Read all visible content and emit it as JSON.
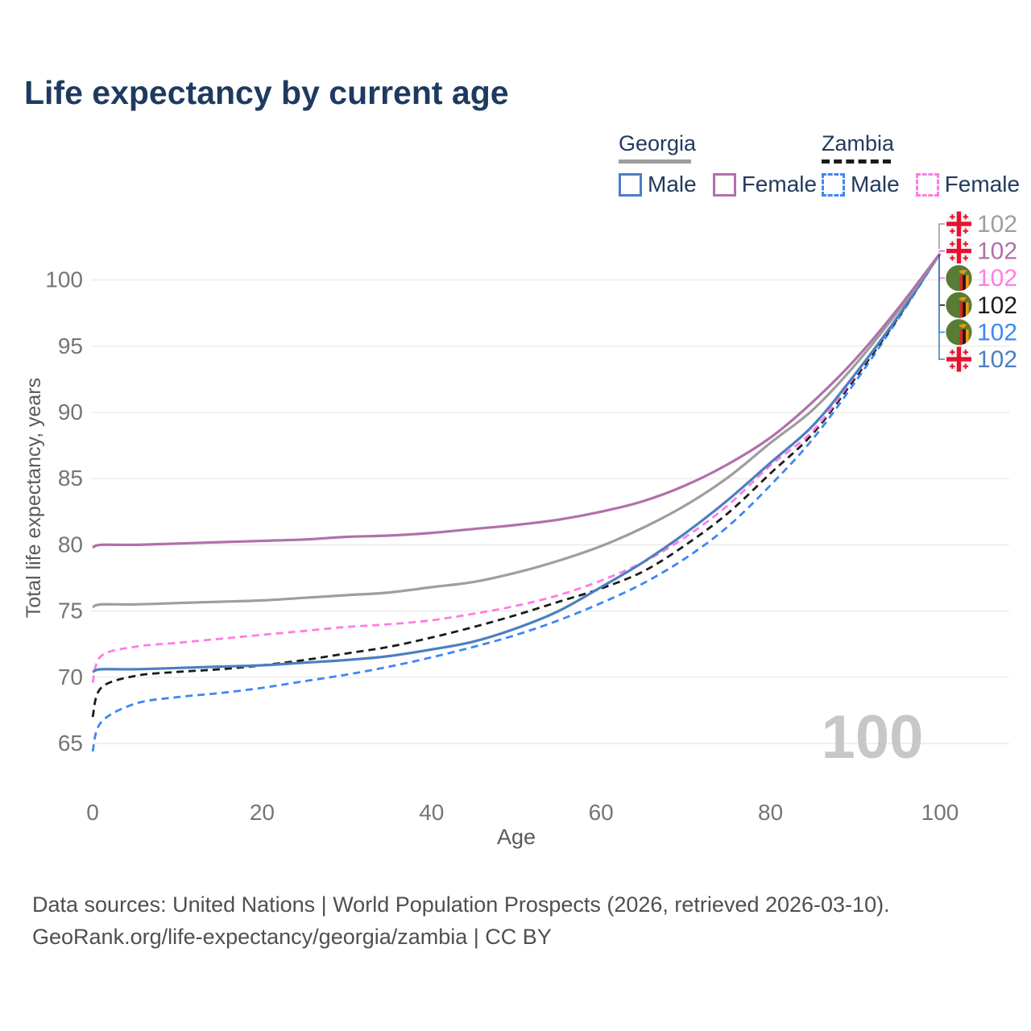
{
  "header": {
    "title": "Life expectancy by current age"
  },
  "legend": {
    "groups": [
      {
        "label": "Georgia",
        "line_style": "solid",
        "line_color": "#9e9e9e",
        "items": [
          {
            "label": "Male",
            "color": "#4c7fc0",
            "line_style": "solid"
          },
          {
            "label": "Female",
            "color": "#b170ab",
            "line_style": "solid"
          }
        ]
      },
      {
        "label": "Zambia",
        "line_style": "dashed",
        "line_color": "#1a1a1a",
        "items": [
          {
            "label": "Male",
            "color": "#3d87f5",
            "line_style": "dashed"
          },
          {
            "label": "Female",
            "color": "#ff7ce3",
            "line_style": "dashed"
          }
        ]
      }
    ]
  },
  "chart_data": {
    "type": "line",
    "title": "Life expectancy by current age",
    "xlabel": "Age",
    "ylabel": "Total life expectancy, years",
    "xticks": [
      0,
      20,
      40,
      60,
      80,
      100
    ],
    "yticks": [
      65,
      70,
      75,
      80,
      85,
      90,
      95,
      100
    ],
    "xlim": [
      0,
      100
    ],
    "ylim": [
      63,
      103
    ],
    "grid": true,
    "legend_position": "top-right",
    "x": [
      0,
      1,
      5,
      10,
      15,
      20,
      25,
      30,
      35,
      40,
      45,
      50,
      55,
      60,
      65,
      70,
      75,
      80,
      85,
      90,
      95,
      100
    ],
    "series": [
      {
        "key": "zambia-male",
        "name": "Zambia Male",
        "country": "Zambia",
        "group": "Male",
        "color": "#3d87f5",
        "dash": true,
        "values": [
          64.4,
          66.6,
          68.0,
          68.5,
          68.8,
          69.2,
          69.7,
          70.2,
          70.8,
          71.5,
          72.3,
          73.2,
          74.3,
          75.6,
          77.1,
          79.0,
          81.4,
          84.5,
          88.0,
          92.3,
          97.0,
          102
        ]
      },
      {
        "key": "zambia-total",
        "name": "Zambia",
        "country": "Zambia",
        "group": "Total",
        "color": "#1b1b1b",
        "dash": true,
        "values": [
          67.0,
          69.2,
          70.1,
          70.4,
          70.6,
          70.9,
          71.3,
          71.8,
          72.3,
          73.0,
          73.8,
          74.7,
          75.7,
          76.7,
          78.0,
          80.0,
          82.4,
          85.4,
          88.4,
          92.6,
          97.1,
          102
        ]
      },
      {
        "key": "zambia-female",
        "name": "Zambia Female",
        "country": "Zambia",
        "group": "Female",
        "color": "#ff7ce3",
        "dash": true,
        "values": [
          69.6,
          71.6,
          72.3,
          72.6,
          72.9,
          73.2,
          73.5,
          73.8,
          74.0,
          74.3,
          74.8,
          75.4,
          76.2,
          77.3,
          78.7,
          80.6,
          83.0,
          86.0,
          88.6,
          92.8,
          97.2,
          102
        ]
      },
      {
        "key": "georgia-male",
        "name": "Georgia Male",
        "country": "Georgia",
        "group": "Male",
        "color": "#4c7fc0",
        "dash": false,
        "values": [
          70.4,
          70.6,
          70.6,
          70.7,
          70.8,
          70.9,
          71.1,
          71.3,
          71.6,
          72.1,
          72.7,
          73.7,
          75.0,
          76.8,
          78.7,
          80.9,
          83.4,
          86.2,
          89.0,
          92.9,
          97.2,
          102
        ]
      },
      {
        "key": "georgia-total",
        "name": "Georgia",
        "country": "Georgia",
        "group": "Total",
        "color": "#9e9e9e",
        "dash": false,
        "values": [
          75.3,
          75.5,
          75.5,
          75.6,
          75.7,
          75.8,
          76.0,
          76.2,
          76.4,
          76.8,
          77.2,
          77.9,
          78.8,
          79.9,
          81.3,
          83.0,
          85.1,
          87.7,
          90.2,
          93.6,
          97.6,
          102
        ]
      },
      {
        "key": "georgia-female",
        "name": "Georgia Female",
        "country": "Georgia",
        "group": "Female",
        "color": "#b170ab",
        "dash": false,
        "values": [
          79.8,
          80.0,
          80.0,
          80.1,
          80.2,
          80.3,
          80.4,
          80.6,
          80.7,
          80.9,
          81.2,
          81.5,
          81.9,
          82.5,
          83.3,
          84.5,
          86.1,
          88.1,
          90.8,
          94.0,
          97.8,
          102
        ]
      }
    ],
    "endpoint_labels": [
      {
        "flag": "georgia",
        "value": "102",
        "color": "#9e9e9e",
        "series": "georgia-total"
      },
      {
        "flag": "georgia",
        "value": "102",
        "color": "#b170ab",
        "series": "georgia-female"
      },
      {
        "flag": "zambia",
        "value": "102",
        "color": "#ff7ce3",
        "series": "zambia-female"
      },
      {
        "flag": "zambia",
        "value": "102",
        "color": "#1b1b1b",
        "series": "zambia-total"
      },
      {
        "flag": "zambia",
        "value": "102",
        "color": "#3d87f5",
        "series": "zambia-male"
      },
      {
        "flag": "georgia",
        "value": "102",
        "color": "#4c7fc0",
        "series": "georgia-male"
      }
    ],
    "watermark": {
      "text": "100",
      "color": "#c7c7c7"
    }
  },
  "footer": {
    "line1": "Data sources: United Nations | World Population Prospects (2026, retrieved 2026-03-10).",
    "line2": "GeoRank.org/life-expectancy/georgia/zambia | CC BY"
  }
}
